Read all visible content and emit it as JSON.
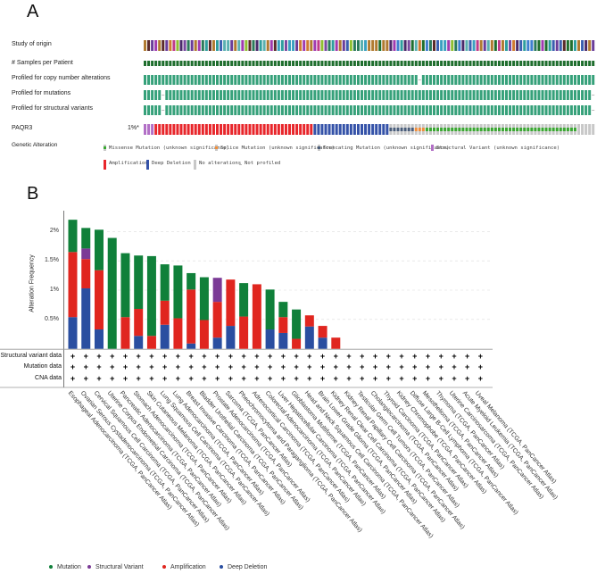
{
  "panel_a": {
    "label": "A",
    "tracks": [
      "Study of origin",
      "# Samples per Patient",
      "Profiled for copy number alterations",
      "Profiled for mutations",
      "Profiled for structural variants"
    ],
    "gene": "PAQR3",
    "gene_freq": "1%*",
    "legend_title": "Genetic Alteration",
    "legend": [
      {
        "label": "Missense Mutation (unknown significance)",
        "color": "#3aa832"
      },
      {
        "label": "Splice Mutation (unknown significance)",
        "color": "#f08f3c"
      },
      {
        "label": "Truncating Mutation (unknown significance)",
        "color": "#4a5d7a"
      },
      {
        "label": "Structural Variant (unknown significance)",
        "color": "#b26fc6"
      },
      {
        "label": "Amplification",
        "color": "#e8262b"
      },
      {
        "label": "Deep Deletion",
        "color": "#3452a8"
      },
      {
        "label": "No alterations",
        "color": "#c8c8c8"
      },
      {
        "label": "Not profiled",
        "color": "#bbbbbb"
      }
    ],
    "colors": {
      "profiled": "#36a17a",
      "samples": "#1f6e2e",
      "no_alteration": "#c8c8c8"
    },
    "study_palette": [
      "#3a5fb0",
      "#6a3d9a",
      "#2f9e9e",
      "#a03ab0",
      "#4a2a6a",
      "#3aa0c0",
      "#8fbf30",
      "#b07a30",
      "#5a2a2a",
      "#c03a8a",
      "#2a7a5a",
      "#3f7fd0",
      "#7a4aa0",
      "#1f6e2e",
      "#d07a30",
      "#5ab0b0"
    ]
  },
  "panel_b": {
    "label": "B",
    "data_rows": [
      "Structural variant data",
      "Mutation data",
      "CNA data"
    ],
    "marker": "+",
    "legend": [
      {
        "label": "Mutation",
        "color": "#10803a"
      },
      {
        "label": "Structural Variant",
        "color": "#7b3a96"
      },
      {
        "label": "Amplification",
        "color": "#e0261f"
      },
      {
        "label": "Deep Deletion",
        "color": "#2a4ea0"
      }
    ]
  },
  "chart_data": {
    "type": "bar",
    "stacked": true,
    "title": "",
    "xlabel": "",
    "ylabel": "Alteration Frequency",
    "ylim": [
      0,
      2.3
    ],
    "yticks": [
      0.5,
      1,
      1.5,
      2
    ],
    "ytick_labels": [
      "0.5%",
      "1%",
      "1.5%",
      "2%"
    ],
    "grid": "horizontal dashed",
    "legend_position": "bottom",
    "categories": [
      "Esophageal Adenocarcinoma (TCGA, PanCancer Atlas)",
      "Ovarian Serous Cystadenocarcinoma (TCGA, PanCancer Atlas)",
      "Cervical Squamous Cell Carcinoma (TCGA, PanCancer Atlas)",
      "Uterine Corpus Endometrial Carcinoma (TCGA, PanCancer Atlas)",
      "Pancreatic Adenocarcinoma (TCGA, PanCancer Atlas)",
      "Stomach Adenocarcinoma (TCGA, PanCancer Atlas)",
      "Skin Cutaneous Melanoma (TCGA, PanCancer Atlas)",
      "Lung Squamous Cell Carcinoma (TCGA, PanCancer Atlas)",
      "Lung Adenocarcinoma (TCGA, PanCancer Atlas)",
      "Breast Invasive Carcinoma (TCGA, PanCancer Atlas)",
      "Bladder Urothelial Carcinoma (TCGA, PanCancer Atlas)",
      "Prostate Adenocarcinoma (TCGA, PanCancer Atlas)",
      "Sarcoma (TCGA, PanCancer Atlas)",
      "Pheochromocytoma and Paraganglioma (TCGA, PanCancer Atlas)",
      "Adrenocortical Carcinoma (TCGA, PanCancer Atlas)",
      "Colorectal Adenocarcinoma (TCGA, PanCancer Atlas)",
      "Liver Hepatocellular Carcinoma (TCGA, PanCancer Atlas)",
      "Glioblastoma Multiforme (TCGA, PanCancer Atlas)",
      "Head and Neck Squamous Cell Carcinoma (TCGA, PanCancer Atlas)",
      "Brain Lower Grade Glioma (TCGA, PanCancer Atlas)",
      "Kidney Renal Clear Cell Carcinoma (TCGA, PanCancer Atlas)",
      "Kidney Renal Papillary Cell Carcinoma (TCGA, PanCancer Atlas)",
      "Testicular Germ Cell Tumors (TCGA, PanCancer Atlas)",
      "Cholangiocarcinoma (TCGA, PanCancer Atlas)",
      "Thyroid Carcinoma (TCGA, PanCancer Atlas)",
      "Kidney Chromophobe (TCGA, PanCancer Atlas)",
      "Diffuse Large B-Cell Lymphoma (TCGA, PanCancer Atlas)",
      "Mesothelioma (TCGA, PanCancer Atlas)",
      "Thymoma (TCGA, PanCancer Atlas)",
      "Uterine Carcinosarcoma (TCGA, PanCancer Atlas)",
      "Acute Myeloid Leukemia (TCGA, PanCancer Atlas)",
      "Uveal Melanoma (TCGA, PanCancer Atlas)"
    ],
    "series": [
      {
        "name": "Deep Deletion",
        "color": "#2a4ea0",
        "values": [
          0.54,
          1.03,
          0.33,
          0,
          0,
          0.22,
          0,
          0.41,
          0,
          0.09,
          0,
          0.19,
          0.39,
          0,
          0,
          0.33,
          0.27,
          0,
          0.38,
          0.19,
          0,
          0,
          0,
          0,
          0,
          0,
          0,
          0,
          0,
          0,
          0,
          0
        ]
      },
      {
        "name": "Amplification",
        "color": "#e0261f",
        "values": [
          1.11,
          0.5,
          1.01,
          0,
          0.54,
          0.46,
          0.22,
          0.41,
          0.52,
          0.92,
          0.49,
          0.61,
          0.79,
          0.55,
          1.1,
          0,
          0.27,
          0.17,
          0.19,
          0.2,
          0.19,
          0,
          0,
          0,
          0,
          0,
          0,
          0,
          0,
          0,
          0,
          0
        ]
      },
      {
        "name": "Structural Variant",
        "color": "#7b3a96",
        "values": [
          0,
          0.18,
          0,
          0,
          0,
          0,
          0,
          0,
          0,
          0,
          0,
          0.41,
          0,
          0,
          0,
          0,
          0,
          0,
          0,
          0,
          0,
          0,
          0,
          0,
          0,
          0,
          0,
          0,
          0,
          0,
          0,
          0
        ]
      },
      {
        "name": "Mutation",
        "color": "#10803a",
        "values": [
          0.55,
          0.35,
          0.69,
          1.89,
          1.09,
          0.91,
          1.36,
          0.62,
          0.9,
          0.28,
          0.73,
          0,
          0,
          0.57,
          0,
          0.68,
          0.26,
          0.5,
          0,
          0,
          0,
          0,
          0,
          0,
          0,
          0,
          0,
          0,
          0,
          0,
          0,
          0
        ]
      }
    ]
  }
}
